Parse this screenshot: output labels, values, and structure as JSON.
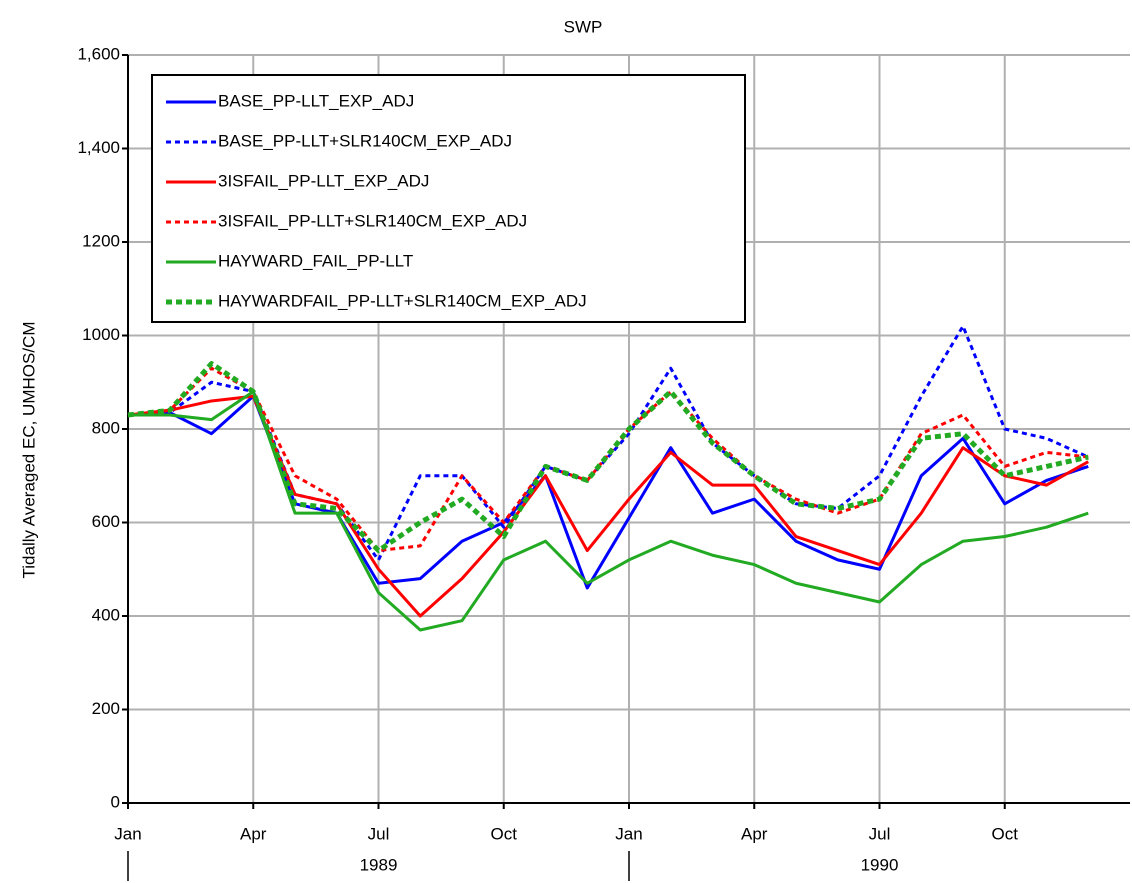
{
  "chart_data": {
    "type": "line",
    "title": "SWP",
    "y_label": "Tidally Averaged EC, UMHOS/CM",
    "x": [
      "1989-01",
      "1989-02",
      "1989-03",
      "1989-04",
      "1989-05",
      "1989-06",
      "1989-07",
      "1989-08",
      "1989-09",
      "1989-10",
      "1989-11",
      "1989-12",
      "1990-01",
      "1990-02",
      "1990-03",
      "1990-04",
      "1990-05",
      "1990-06",
      "1990-07",
      "1990-08",
      "1990-09",
      "1990-10",
      "1990-11",
      "1990-12"
    ],
    "xlim": [
      "1989-01",
      "1991-01"
    ],
    "xticks": [
      {
        "value": "1989-01",
        "label": "Jan"
      },
      {
        "value": "1989-04",
        "label": "Apr"
      },
      {
        "value": "1989-07",
        "label": "Jul"
      },
      {
        "value": "1989-10",
        "label": "Oct"
      },
      {
        "value": "1990-01",
        "label": "Jan"
      },
      {
        "value": "1990-04",
        "label": "Apr"
      },
      {
        "value": "1990-07",
        "label": "Jul"
      },
      {
        "value": "1990-10",
        "label": "Oct"
      }
    ],
    "years": [
      "1989",
      "1990"
    ],
    "ylim": [
      0,
      1600
    ],
    "yticks": [
      0,
      200,
      400,
      600,
      800,
      1000,
      1200,
      {
        "value": 1400,
        "label": "1,400"
      },
      {
        "value": 1600,
        "label": "1,600"
      }
    ],
    "grid": true,
    "legend": "top-left",
    "series": [
      {
        "name": "BASE_PP-LLT_EXP_ADJ",
        "color": "#0000ff",
        "dash": "solid",
        "values": [
          830,
          835,
          790,
          870,
          640,
          620,
          470,
          480,
          560,
          600,
          700,
          460,
          610,
          760,
          620,
          650,
          560,
          520,
          500,
          700,
          780,
          640,
          690,
          720
        ]
      },
      {
        "name": "BASE_PP-LLT+SLR140CM_EXP_ADJ",
        "color": "#0000ff",
        "dash": "dotted",
        "values": [
          830,
          835,
          900,
          880,
          660,
          640,
          520,
          700,
          700,
          590,
          720,
          690,
          790,
          930,
          770,
          700,
          640,
          630,
          700,
          870,
          1020,
          800,
          780,
          740
        ]
      },
      {
        "name": "3ISFAIL_PP-LLT_EXP_ADJ",
        "color": "#ff0000",
        "dash": "solid",
        "values": [
          830,
          840,
          860,
          870,
          660,
          640,
          500,
          400,
          480,
          580,
          700,
          540,
          650,
          750,
          680,
          680,
          570,
          540,
          510,
          620,
          760,
          700,
          680,
          730
        ]
      },
      {
        "name": "3ISFAIL_PP-LLT+SLR140CM_EXP_ADJ",
        "color": "#ff0000",
        "dash": "dotted",
        "values": [
          830,
          840,
          930,
          880,
          700,
          650,
          540,
          550,
          700,
          600,
          720,
          690,
          800,
          880,
          780,
          700,
          650,
          620,
          650,
          790,
          830,
          720,
          750,
          740
        ]
      },
      {
        "name": "HAYWARD_FAIL_PP-LLT",
        "color": "#22aa22",
        "dash": "solid",
        "values": [
          830,
          830,
          820,
          880,
          620,
          620,
          450,
          370,
          390,
          520,
          560,
          470,
          520,
          560,
          530,
          510,
          470,
          450,
          430,
          510,
          560,
          570,
          590,
          620
        ]
      },
      {
        "name": "HAYWARDFAIL_PP-LLT+SLR140CM_EXP_ADJ",
        "color": "#22aa22",
        "dash": "bold-dotted",
        "values": [
          830,
          840,
          940,
          880,
          640,
          630,
          540,
          600,
          650,
          570,
          720,
          690,
          800,
          880,
          770,
          700,
          640,
          630,
          650,
          780,
          790,
          700,
          720,
          740
        ]
      }
    ]
  }
}
